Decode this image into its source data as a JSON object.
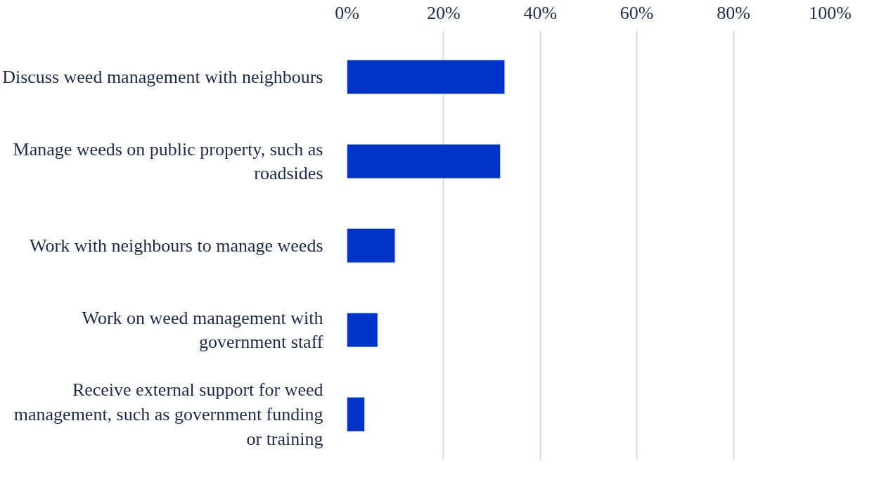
{
  "chart_data": {
    "type": "bar",
    "orientation": "horizontal",
    "categories": [
      "Discuss weed management with neighbours",
      "Manage weeds on public property, such as\nroadsides",
      "Work with neighbours to manage weeds",
      "Work on weed management with\ngovernment staff",
      "Receive external support for weed\nmanagement, such as government funding\nor training"
    ],
    "values": [
      32.6,
      31.7,
      9.9,
      6.3,
      3.6
    ],
    "color": "#0033c8",
    "xlim": [
      0,
      100
    ],
    "xticks": [
      {
        "value": 0,
        "label": "0%"
      },
      {
        "value": 20,
        "label": "20%"
      },
      {
        "value": 40,
        "label": "40%"
      },
      {
        "value": 60,
        "label": "60%"
      },
      {
        "value": 80,
        "label": "80%"
      },
      {
        "value": 100,
        "label": "100%"
      }
    ],
    "grid": "x"
  }
}
